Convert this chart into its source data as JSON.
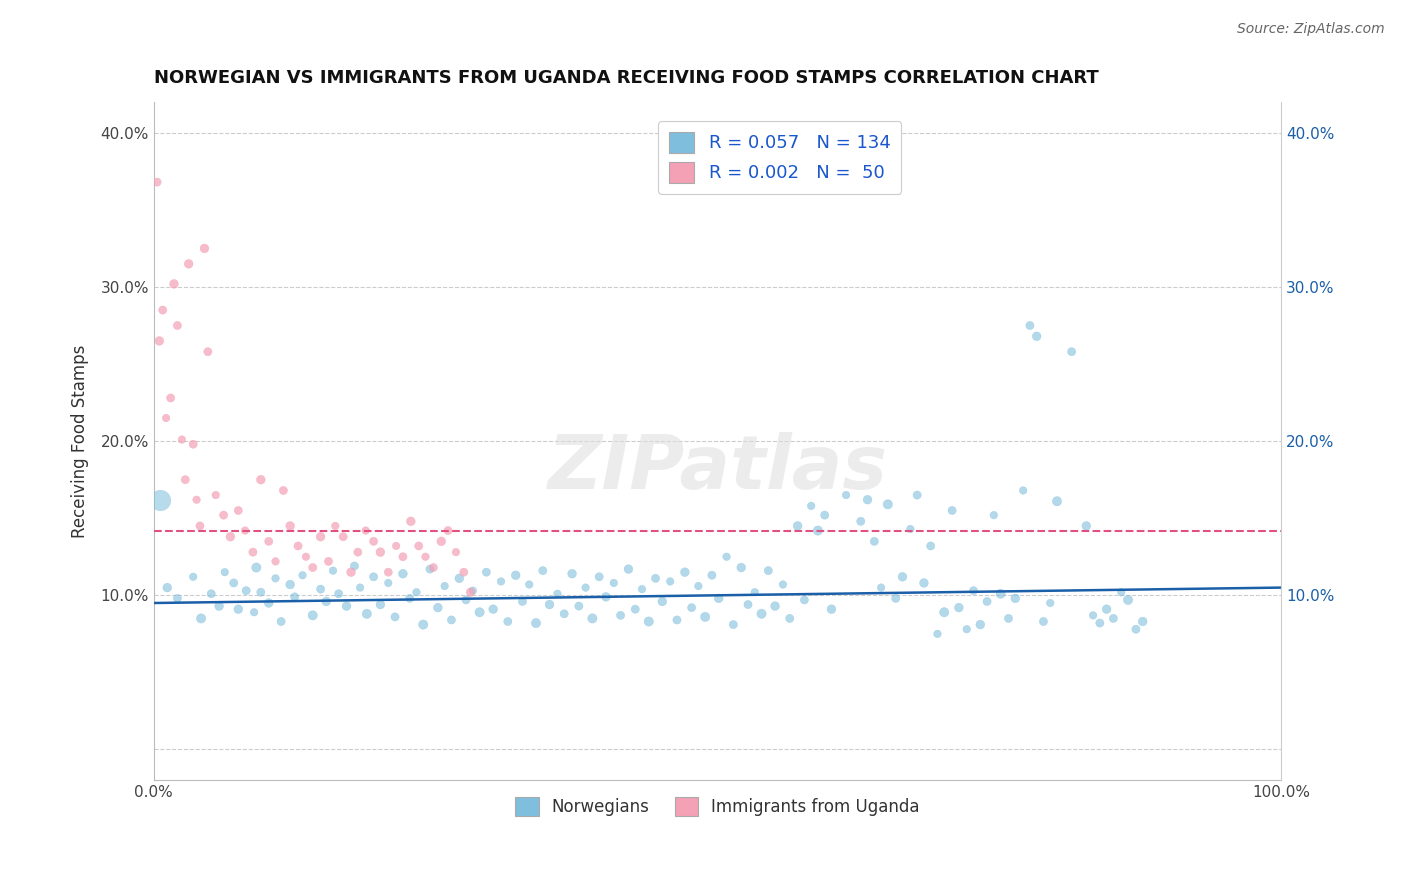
{
  "title": "NORWEGIAN VS IMMIGRANTS FROM UGANDA RECEIVING FOOD STAMPS CORRELATION CHART",
  "source": "Source: ZipAtlas.com",
  "ylabel": "Receiving Food Stamps",
  "xlim": [
    0.0,
    100.0
  ],
  "ylim": [
    -2.0,
    42.0
  ],
  "legend_r1": "R = 0.057",
  "legend_n1": "N = 134",
  "legend_r2": "R = 0.002",
  "legend_n2": "N =  50",
  "legend_label1": "Norwegians",
  "legend_label2": "Immigrants from Uganda",
  "blue_color": "#7fbfdd",
  "pink_color": "#f4a0b5",
  "blue_line_color": "#1a5fa8",
  "pink_line_color": "#e05080",
  "norwegians_x": [
    1.2,
    2.1,
    3.5,
    4.2,
    5.1,
    5.8,
    6.3,
    7.1,
    7.5,
    8.2,
    8.9,
    9.1,
    9.5,
    10.2,
    10.8,
    11.3,
    12.1,
    12.5,
    13.2,
    14.1,
    14.8,
    15.3,
    15.9,
    16.4,
    17.1,
    17.8,
    18.3,
    18.9,
    19.5,
    20.1,
    20.8,
    21.4,
    22.1,
    22.7,
    23.3,
    23.9,
    24.5,
    25.2,
    25.8,
    26.4,
    27.1,
    27.7,
    28.3,
    28.9,
    29.5,
    30.1,
    30.8,
    31.4,
    32.1,
    32.7,
    33.3,
    33.9,
    34.5,
    35.1,
    35.8,
    36.4,
    37.1,
    37.7,
    38.3,
    38.9,
    39.5,
    40.1,
    40.8,
    41.4,
    42.1,
    42.7,
    43.3,
    43.9,
    44.5,
    45.1,
    45.8,
    46.4,
    47.1,
    47.7,
    48.3,
    48.9,
    49.5,
    50.1,
    50.8,
    51.4,
    52.1,
    52.7,
    53.3,
    53.9,
    54.5,
    55.1,
    55.8,
    56.4,
    57.1,
    57.7,
    58.3,
    58.9,
    59.5,
    60.1,
    61.4,
    62.7,
    63.3,
    63.9,
    64.5,
    65.1,
    65.8,
    66.4,
    67.1,
    67.7,
    68.3,
    68.9,
    69.5,
    70.1,
    70.8,
    71.4,
    72.1,
    72.7,
    73.3,
    73.9,
    74.5,
    75.1,
    75.8,
    76.4,
    77.1,
    77.7,
    78.3,
    78.9,
    79.5,
    80.1,
    81.4,
    82.7,
    83.3,
    83.9,
    84.5,
    85.1,
    85.8,
    86.4,
    87.1,
    87.7
  ],
  "norwegians_y": [
    10.5,
    9.8,
    11.2,
    8.5,
    10.1,
    9.3,
    11.5,
    10.8,
    9.1,
    10.3,
    8.9,
    11.8,
    10.2,
    9.5,
    11.1,
    8.3,
    10.7,
    9.9,
    11.3,
    8.7,
    10.4,
    9.6,
    11.6,
    10.1,
    9.3,
    11.9,
    10.5,
    8.8,
    11.2,
    9.4,
    10.8,
    8.6,
    11.4,
    9.8,
    10.2,
    8.1,
    11.7,
    9.2,
    10.6,
    8.4,
    11.1,
    9.7,
    10.3,
    8.9,
    11.5,
    9.1,
    10.9,
    8.3,
    11.3,
    9.6,
    10.7,
    8.2,
    11.6,
    9.4,
    10.1,
    8.8,
    11.4,
    9.3,
    10.5,
    8.5,
    11.2,
    9.9,
    10.8,
    8.7,
    11.7,
    9.1,
    10.4,
    8.3,
    11.1,
    9.6,
    10.9,
    8.4,
    11.5,
    9.2,
    10.6,
    8.6,
    11.3,
    9.8,
    12.5,
    8.1,
    11.8,
    9.4,
    10.2,
    8.8,
    11.6,
    9.3,
    10.7,
    8.5,
    14.5,
    9.7,
    15.8,
    14.2,
    15.2,
    9.1,
    16.5,
    14.8,
    16.2,
    13.5,
    10.5,
    15.9,
    9.8,
    11.2,
    14.3,
    16.5,
    10.8,
    13.2,
    7.5,
    8.9,
    15.5,
    9.2,
    7.8,
    10.3,
    8.1,
    9.6,
    15.2,
    10.1,
    8.5,
    9.8,
    16.8,
    27.5,
    26.8,
    8.3,
    9.5,
    16.1,
    25.8,
    14.5,
    8.7,
    8.2,
    9.1,
    8.5,
    10.2,
    9.7,
    7.8,
    8.3
  ],
  "norwegians_size": [
    40,
    35,
    30,
    45,
    35,
    40,
    30,
    35,
    40,
    35,
    30,
    45,
    35,
    40,
    30,
    35,
    40,
    35,
    30,
    45,
    35,
    40,
    30,
    35,
    40,
    35,
    30,
    45,
    35,
    40,
    30,
    35,
    40,
    35,
    30,
    45,
    35,
    40,
    30,
    35,
    40,
    35,
    30,
    45,
    35,
    40,
    30,
    35,
    40,
    35,
    30,
    45,
    35,
    40,
    30,
    35,
    40,
    35,
    30,
    45,
    35,
    40,
    30,
    35,
    40,
    35,
    30,
    45,
    35,
    40,
    30,
    35,
    40,
    35,
    30,
    45,
    35,
    40,
    30,
    35,
    40,
    35,
    30,
    45,
    35,
    40,
    30,
    35,
    40,
    35,
    30,
    45,
    35,
    40,
    30,
    35,
    40,
    35,
    30,
    45,
    35,
    40,
    30,
    35,
    40,
    35,
    30,
    45,
    35,
    40,
    30,
    35,
    40,
    35,
    30,
    45,
    35,
    40,
    30,
    35,
    40,
    35,
    30,
    45,
    35,
    40,
    30,
    35,
    40,
    35,
    30,
    45,
    35,
    40
  ],
  "uganda_x": [
    0.3,
    0.5,
    0.8,
    1.1,
    1.5,
    1.8,
    2.1,
    2.5,
    2.8,
    3.1,
    3.5,
    3.8,
    4.1,
    4.5,
    4.8,
    5.5,
    6.2,
    6.8,
    7.5,
    8.1,
    8.8,
    9.5,
    10.2,
    10.8,
    11.5,
    12.1,
    12.8,
    13.5,
    14.1,
    14.8,
    15.5,
    16.1,
    16.8,
    17.5,
    18.1,
    18.8,
    19.5,
    20.1,
    20.8,
    21.5,
    22.1,
    22.8,
    23.5,
    24.1,
    24.8,
    25.5,
    26.1,
    26.8,
    27.5,
    28.1
  ],
  "uganda_y": [
    36.8,
    26.5,
    28.5,
    21.5,
    22.8,
    30.2,
    27.5,
    20.1,
    17.5,
    31.5,
    19.8,
    16.2,
    14.5,
    32.5,
    25.8,
    16.5,
    15.2,
    13.8,
    15.5,
    14.2,
    12.8,
    17.5,
    13.5,
    12.2,
    16.8,
    14.5,
    13.2,
    12.5,
    11.8,
    13.8,
    12.2,
    14.5,
    13.8,
    11.5,
    12.8,
    14.2,
    13.5,
    12.8,
    11.5,
    13.2,
    12.5,
    14.8,
    13.2,
    12.5,
    11.8,
    13.5,
    14.2,
    12.8,
    11.5,
    10.2
  ],
  "uganda_size": [
    35,
    40,
    35,
    30,
    35,
    40,
    35,
    30,
    35,
    40,
    35,
    30,
    35,
    40,
    35,
    30,
    35,
    40,
    35,
    30,
    35,
    40,
    35,
    30,
    35,
    40,
    35,
    30,
    35,
    40,
    35,
    30,
    35,
    40,
    35,
    30,
    35,
    40,
    35,
    30,
    35,
    40,
    35,
    30,
    35,
    40,
    35,
    30,
    35,
    40
  ],
  "blue_trend_y_start": 9.5,
  "blue_trend_y_end": 10.5,
  "pink_trend_y": 14.2
}
